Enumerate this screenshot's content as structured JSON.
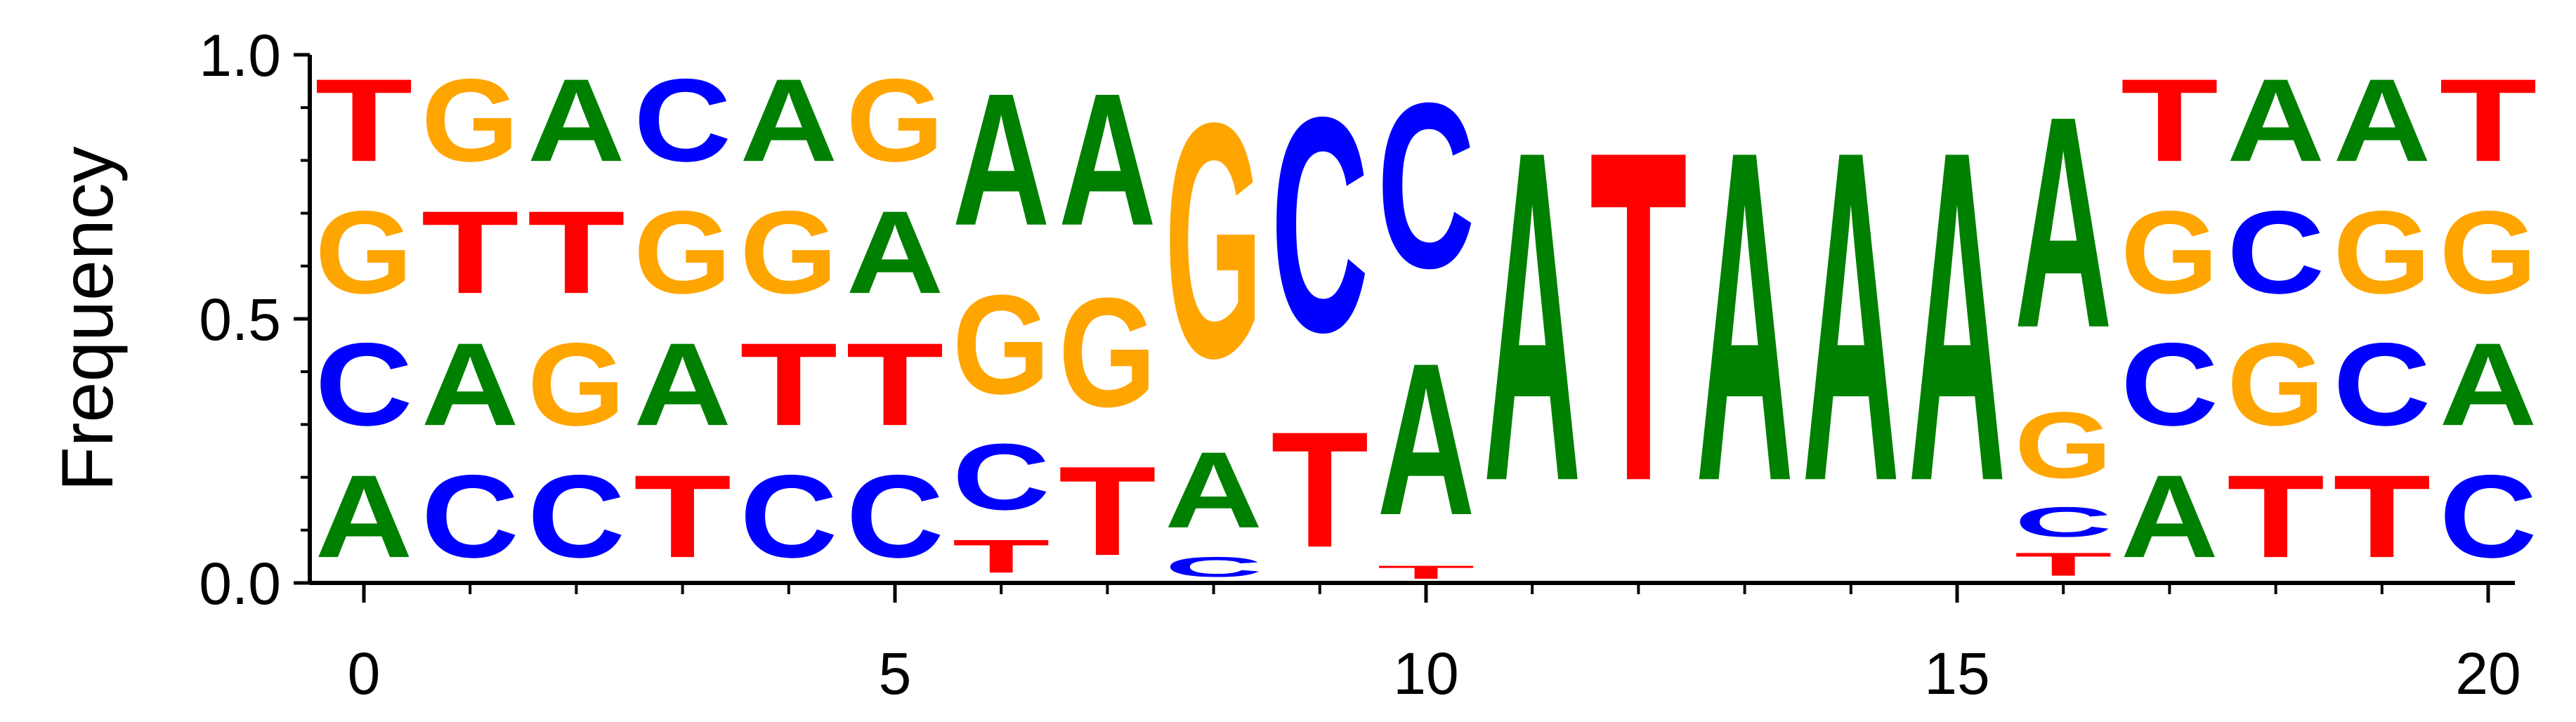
{
  "chart_data": {
    "type": "sequence-logo",
    "title": "",
    "xlabel": "",
    "ylabel": "Frequency",
    "xlim": [
      -0.5,
      20.5
    ],
    "ylim": [
      0,
      1
    ],
    "xticks": [
      0,
      5,
      10,
      15,
      20
    ],
    "xtick_labels": [
      "0",
      "5",
      "10",
      "15",
      "20"
    ],
    "yticks": [
      0,
      0.5,
      1
    ],
    "ytick_labels": [
      "0.0",
      "0.5",
      "1.0"
    ],
    "grid": false,
    "letter_colors": {
      "A": "#008000",
      "C": "#0000ff",
      "G": "#ffa500",
      "T": "#ff0000"
    },
    "positions": [
      {
        "pos": 0,
        "stack": [
          [
            "A",
            0.25
          ],
          [
            "C",
            0.25
          ],
          [
            "G",
            0.25
          ],
          [
            "T",
            0.25
          ]
        ]
      },
      {
        "pos": 1,
        "stack": [
          [
            "C",
            0.25
          ],
          [
            "A",
            0.25
          ],
          [
            "T",
            0.25
          ],
          [
            "G",
            0.25
          ]
        ]
      },
      {
        "pos": 2,
        "stack": [
          [
            "C",
            0.25
          ],
          [
            "G",
            0.25
          ],
          [
            "T",
            0.25
          ],
          [
            "A",
            0.25
          ]
        ]
      },
      {
        "pos": 3,
        "stack": [
          [
            "T",
            0.25
          ],
          [
            "A",
            0.25
          ],
          [
            "G",
            0.25
          ],
          [
            "C",
            0.25
          ]
        ]
      },
      {
        "pos": 4,
        "stack": [
          [
            "C",
            0.25
          ],
          [
            "T",
            0.25
          ],
          [
            "G",
            0.25
          ],
          [
            "A",
            0.25
          ]
        ]
      },
      {
        "pos": 5,
        "stack": [
          [
            "C",
            0.25
          ],
          [
            "T",
            0.25
          ],
          [
            "A",
            0.25
          ],
          [
            "G",
            0.25
          ]
        ]
      },
      {
        "pos": 6,
        "stack": [
          [
            "T",
            0.1
          ],
          [
            "C",
            0.2
          ],
          [
            "G",
            0.3
          ],
          [
            "A",
            0.4
          ]
        ]
      },
      {
        "pos": 7,
        "stack": [
          [
            "T",
            0.27
          ],
          [
            "G",
            0.33
          ],
          [
            "A",
            0.4
          ]
        ]
      },
      {
        "pos": 8,
        "stack": [
          [
            "C",
            0.06
          ],
          [
            "A",
            0.23
          ],
          [
            "G",
            0.71
          ]
        ]
      },
      {
        "pos": 9,
        "stack": [
          [
            "T",
            0.35
          ],
          [
            "C",
            0.65
          ]
        ]
      },
      {
        "pos": 10,
        "stack": [
          [
            "T",
            0.04
          ],
          [
            "A",
            0.46
          ],
          [
            "C",
            0.5
          ]
        ]
      },
      {
        "pos": 11,
        "stack": [
          [
            "A",
            1.0
          ]
        ]
      },
      {
        "pos": 12,
        "stack": [
          [
            "T",
            1.0
          ]
        ]
      },
      {
        "pos": 13,
        "stack": [
          [
            "A",
            1.0
          ]
        ]
      },
      {
        "pos": 14,
        "stack": [
          [
            "A",
            1.0
          ]
        ]
      },
      {
        "pos": 15,
        "stack": [
          [
            "A",
            1.0
          ]
        ]
      },
      {
        "pos": 16,
        "stack": [
          [
            "T",
            0.07
          ],
          [
            "C",
            0.09
          ],
          [
            "G",
            0.2
          ],
          [
            "A",
            0.64
          ]
        ]
      },
      {
        "pos": 17,
        "stack": [
          [
            "A",
            0.25
          ],
          [
            "C",
            0.25
          ],
          [
            "G",
            0.25
          ],
          [
            "T",
            0.25
          ]
        ]
      },
      {
        "pos": 18,
        "stack": [
          [
            "T",
            0.25
          ],
          [
            "G",
            0.25
          ],
          [
            "C",
            0.25
          ],
          [
            "A",
            0.25
          ]
        ]
      },
      {
        "pos": 19,
        "stack": [
          [
            "T",
            0.25
          ],
          [
            "C",
            0.25
          ],
          [
            "G",
            0.25
          ],
          [
            "A",
            0.25
          ]
        ]
      },
      {
        "pos": 20,
        "stack": [
          [
            "C",
            0.25
          ],
          [
            "A",
            0.25
          ],
          [
            "G",
            0.25
          ],
          [
            "T",
            0.25
          ]
        ]
      }
    ]
  }
}
